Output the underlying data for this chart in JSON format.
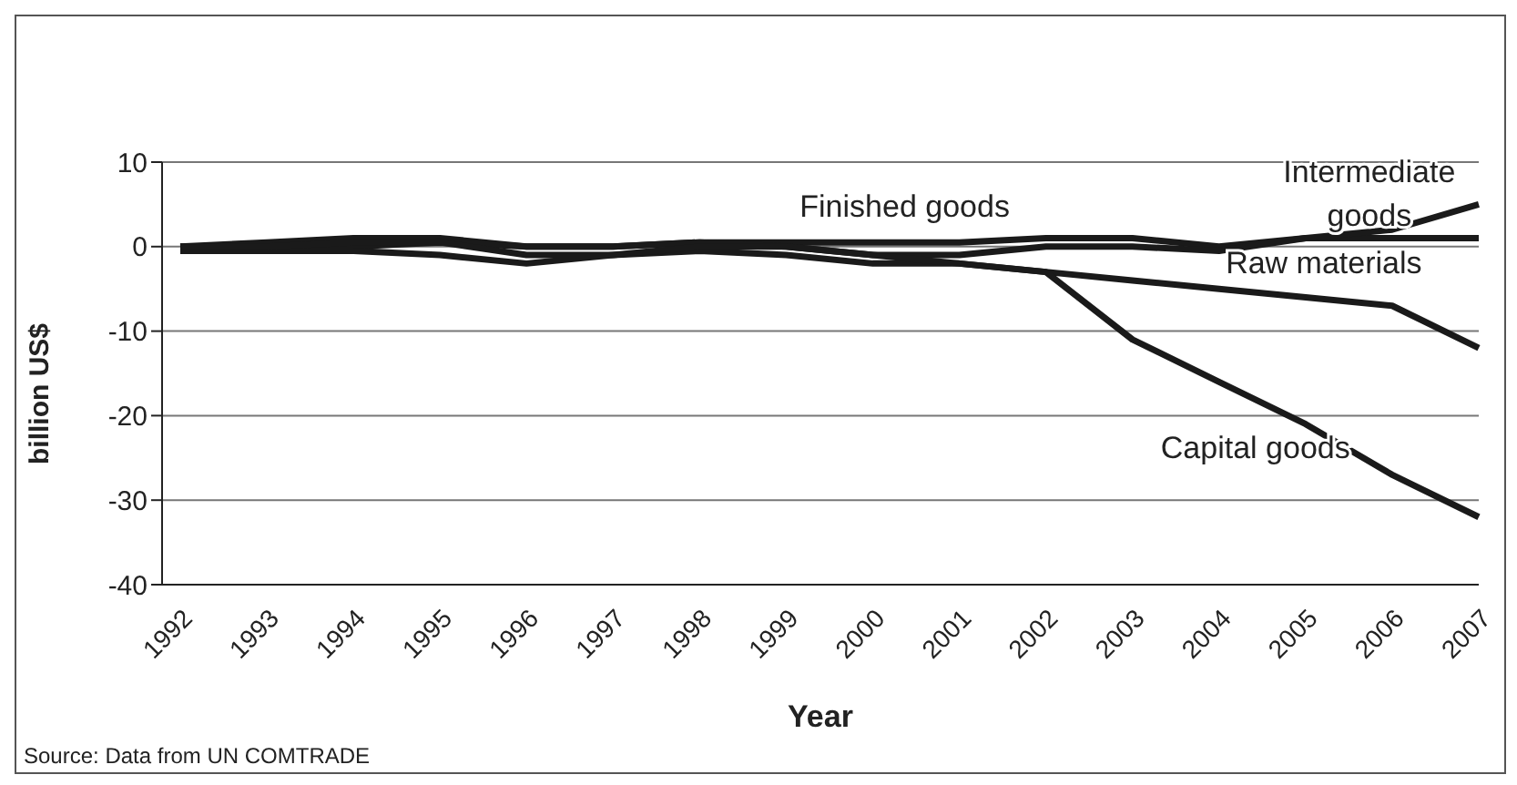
{
  "chart_data": {
    "type": "line",
    "xlabel": "Year",
    "ylabel": "billion US$",
    "categories": [
      "1992",
      "1993",
      "1994",
      "1995",
      "1996",
      "1997",
      "1998",
      "1999",
      "2000",
      "2001",
      "2002",
      "2003",
      "2004",
      "2005",
      "2006",
      "2007"
    ],
    "series": [
      {
        "name": "Finished goods",
        "color": "#1a1a1a",
        "values": [
          0,
          0.5,
          1,
          1,
          0,
          0,
          0.5,
          0.5,
          0.5,
          0.5,
          1,
          1,
          0,
          1,
          1,
          1
        ]
      },
      {
        "name": "Intermediate goods",
        "color": "#1a1a1a",
        "values": [
          -0.5,
          -0.5,
          0,
          0.5,
          0,
          0,
          0.5,
          0,
          -1,
          -1,
          0,
          0,
          -0.5,
          1,
          2,
          5
        ]
      },
      {
        "name": "Raw materials",
        "color": "#1a1a1a",
        "values": [
          -0.5,
          -0.5,
          -0.5,
          -1,
          -2,
          -1,
          -0.5,
          -1,
          -2,
          -2,
          -3,
          -4,
          -5,
          -6,
          -7,
          -12
        ]
      },
      {
        "name": "Capital goods",
        "color": "#1a1a1a",
        "values": [
          0,
          0,
          0.5,
          0.5,
          -1,
          -1,
          0,
          0,
          -1,
          -2,
          -3,
          -11,
          -16,
          -21,
          -27,
          -32
        ]
      }
    ],
    "ylim": [
      -40,
      10
    ],
    "yticks": [
      -40,
      -30,
      -20,
      -10,
      0,
      10
    ],
    "grid": "y",
    "legend": false,
    "marker": "none",
    "line_style": "solid",
    "annotations": [
      "Source: Data from UN COMTRADE"
    ]
  }
}
